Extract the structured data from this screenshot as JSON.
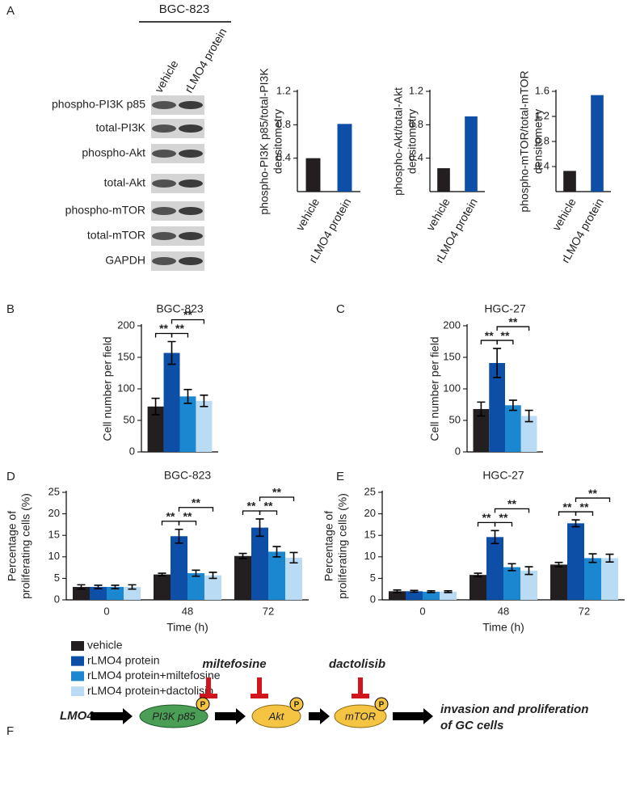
{
  "panel_labels": [
    "A",
    "B",
    "C",
    "D",
    "E",
    "F"
  ],
  "blot": {
    "cell_line": "BGC-823",
    "lanes": [
      "vehicle",
      "rLMO4 protein"
    ],
    "rows": [
      "phospho-PI3K p85",
      "total-PI3K",
      "phospho-Akt",
      "total-Akt",
      "phospho-mTOR",
      "total-mTOR",
      "GAPDH"
    ]
  },
  "chart_data": [
    {
      "type": "bar",
      "ylabel": [
        "phospho-PI3K p85/total-PI3K",
        "densitometry"
      ],
      "categories": [
        "vehicle",
        "rLMO4 protein"
      ],
      "values": [
        0.4,
        0.81
      ],
      "colors": [
        "#231f20",
        "#0d4ea6"
      ],
      "ylim": [
        0,
        1.2
      ],
      "yticks": [
        0.4,
        0.8,
        1.2
      ]
    },
    {
      "type": "bar",
      "ylabel": [
        "phospho-Akt/total-Akt",
        "densitometry"
      ],
      "categories": [
        "vehicle",
        "rLMO4 protein"
      ],
      "values": [
        0.28,
        0.9
      ],
      "colors": [
        "#231f20",
        "#0d4ea6"
      ],
      "ylim": [
        0,
        1.2
      ],
      "yticks": [
        0.4,
        0.8,
        1.2
      ]
    },
    {
      "type": "bar",
      "ylabel": [
        "phospho-mTOR/total-mTOR",
        "densitometry"
      ],
      "categories": [
        "vehicle",
        "rLMO4 protein"
      ],
      "values": [
        0.33,
        1.54
      ],
      "colors": [
        "#231f20",
        "#0d4ea6"
      ],
      "ylim": [
        0,
        1.6
      ],
      "yticks": [
        0.4,
        0.8,
        1.2,
        1.6
      ]
    },
    {
      "type": "bar",
      "title": "BGC-823",
      "ylabel": [
        "Cell number per field"
      ],
      "ylim": [
        0,
        200
      ],
      "yticks": [
        0,
        50,
        100,
        150,
        200
      ],
      "series": [
        {
          "color": "#231f20",
          "values": [
            72
          ],
          "errors": [
            13
          ]
        },
        {
          "color": "#0d4ea6",
          "values": [
            157
          ],
          "errors": [
            18
          ]
        },
        {
          "color": "#1b87d0",
          "values": [
            88
          ],
          "errors": [
            11
          ]
        },
        {
          "color": "#b9dcf4",
          "values": [
            81
          ],
          "errors": [
            9
          ]
        }
      ],
      "brackets": [
        {
          "label": "**",
          "between": [
            0,
            1
          ]
        },
        {
          "label": "**",
          "between": [
            1,
            2
          ]
        },
        {
          "label": "**",
          "between": [
            1,
            3
          ]
        }
      ]
    },
    {
      "type": "bar",
      "title": "HGC-27",
      "ylabel": [
        "Cell number per field"
      ],
      "ylim": [
        0,
        200
      ],
      "yticks": [
        0,
        50,
        100,
        150,
        200
      ],
      "series": [
        {
          "color": "#231f20",
          "values": [
            68
          ],
          "errors": [
            11
          ]
        },
        {
          "color": "#0d4ea6",
          "values": [
            141
          ],
          "errors": [
            23
          ]
        },
        {
          "color": "#1b87d0",
          "values": [
            74
          ],
          "errors": [
            8
          ]
        },
        {
          "color": "#b9dcf4",
          "values": [
            57
          ],
          "errors": [
            9
          ]
        }
      ],
      "brackets": [
        {
          "label": "**",
          "between": [
            0,
            1
          ]
        },
        {
          "label": "**",
          "between": [
            1,
            2
          ]
        },
        {
          "label": "**",
          "between": [
            1,
            3
          ]
        }
      ]
    },
    {
      "type": "bar",
      "title": "BGC-823",
      "ylabel": [
        "Percentage of",
        "proliferating cells (%)"
      ],
      "xlabel": "Time (h)",
      "categories": [
        "0",
        "48",
        "72"
      ],
      "ylim": [
        0,
        25
      ],
      "yticks": [
        0,
        5,
        10,
        15,
        20,
        25
      ],
      "legend": "below",
      "series": [
        {
          "name": "vehicle",
          "color": "#231f20",
          "values": [
            3.0,
            5.9,
            10.2
          ],
          "errors": [
            0.5,
            0.3,
            0.6
          ]
        },
        {
          "name": "rLMO4 protein",
          "color": "#0d4ea6",
          "values": [
            3.0,
            14.8,
            16.8
          ],
          "errors": [
            0.4,
            1.6,
            2.0
          ]
        },
        {
          "name": "rLMO4 protein+miltefosine",
          "color": "#1b87d0",
          "values": [
            3.0,
            6.2,
            11.2
          ],
          "errors": [
            0.4,
            0.7,
            1.2
          ]
        },
        {
          "name": "rLMO4 protein+dactolisib",
          "color": "#b9dcf4",
          "values": [
            3.0,
            5.7,
            9.8
          ],
          "errors": [
            0.5,
            0.7,
            1.2
          ]
        }
      ],
      "brackets": [
        {
          "label": "**",
          "group": 1,
          "between": [
            0,
            1
          ]
        },
        {
          "label": "**",
          "group": 1,
          "between": [
            1,
            2
          ]
        },
        {
          "label": "**",
          "group": 1,
          "between": [
            1,
            3
          ]
        },
        {
          "label": "**",
          "group": 2,
          "between": [
            0,
            1
          ]
        },
        {
          "label": "**",
          "group": 2,
          "between": [
            1,
            2
          ]
        },
        {
          "label": "**",
          "group": 2,
          "between": [
            1,
            3
          ]
        }
      ]
    },
    {
      "type": "bar",
      "title": "HGC-27",
      "ylabel": [
        "Percentage of",
        "proliferating cells (%)"
      ],
      "xlabel": "Time (h)",
      "categories": [
        "0",
        "48",
        "72"
      ],
      "ylim": [
        0,
        25
      ],
      "yticks": [
        0,
        5,
        10,
        15,
        20,
        25
      ],
      "series": [
        {
          "color": "#231f20",
          "values": [
            2.0,
            5.8,
            8.2
          ],
          "errors": [
            0.3,
            0.4,
            0.5
          ]
        },
        {
          "color": "#0d4ea6",
          "values": [
            2.0,
            14.6,
            17.8
          ],
          "errors": [
            0.2,
            1.5,
            0.8
          ]
        },
        {
          "color": "#1b87d0",
          "values": [
            1.9,
            7.6,
            9.7
          ],
          "errors": [
            0.2,
            0.8,
            1.0
          ]
        },
        {
          "color": "#b9dcf4",
          "values": [
            1.9,
            6.8,
            9.7
          ],
          "errors": [
            0.2,
            0.9,
            0.9
          ]
        }
      ],
      "brackets": [
        {
          "label": "**",
          "group": 1,
          "between": [
            0,
            1
          ]
        },
        {
          "label": "**",
          "group": 1,
          "between": [
            1,
            2
          ]
        },
        {
          "label": "**",
          "group": 1,
          "between": [
            1,
            3
          ]
        },
        {
          "label": "**",
          "group": 2,
          "between": [
            0,
            1
          ]
        },
        {
          "label": "**",
          "group": 2,
          "between": [
            1,
            2
          ]
        },
        {
          "label": "**",
          "group": 2,
          "between": [
            1,
            3
          ]
        }
      ]
    }
  ],
  "pathway": {
    "inhibitors": [
      "miltefosine",
      "dactolisib"
    ],
    "nodes": [
      "LMO4",
      "PI3K p85",
      "Akt",
      "mTOR"
    ],
    "phospho": "P",
    "outcome": [
      "invasion and proliferation",
      "of GC cells"
    ]
  }
}
